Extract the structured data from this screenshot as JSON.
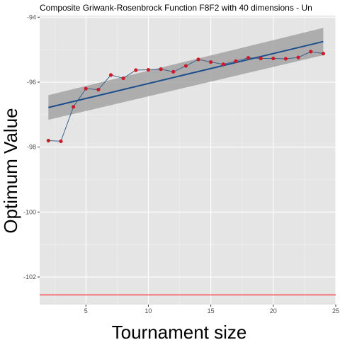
{
  "chart_data": {
    "type": "line",
    "title": "Composite Griwank-Rosenbrock Function F8F2 with 40 dimensions -  Un",
    "xlabel": "Tournament size",
    "ylabel": "Optimum Value",
    "xlim": [
      1.3,
      25
    ],
    "ylim": [
      -102.85,
      -93.95
    ],
    "x_ticks": [
      5,
      10,
      15,
      20,
      25
    ],
    "x_tick_labels": [
      "5",
      "10",
      "15",
      "20",
      "25"
    ],
    "y_ticks": [
      -94,
      -96,
      -98,
      -100,
      -102
    ],
    "y_tick_labels": [
      "-94",
      "-96",
      "-98",
      "-100",
      "-102"
    ],
    "grid": true,
    "series": [
      {
        "x": [
          2,
          3,
          4,
          5,
          6,
          7,
          8,
          9,
          10,
          11,
          12,
          13,
          14,
          15,
          16,
          17,
          18,
          19,
          20,
          21,
          22,
          23,
          24
        ],
        "values": [
          -97.8,
          -97.82,
          -96.76,
          -96.2,
          -96.23,
          -95.78,
          -95.88,
          -95.63,
          -95.62,
          -95.6,
          -95.68,
          -95.5,
          -95.3,
          -95.38,
          -95.45,
          -95.35,
          -95.25,
          -95.27,
          -95.27,
          -95.28,
          -95.24,
          -95.06,
          -95.12
        ]
      }
    ],
    "trend": {
      "x": [
        2,
        24
      ],
      "y": [
        -96.78,
        -94.75
      ],
      "band_upper": [
        -96.4,
        -94.33
      ],
      "band_lower": [
        -97.16,
        -95.17
      ]
    },
    "reference_line": {
      "y": -102.55
    },
    "colors": {
      "panel": "#e5e5e5",
      "grid_major": "#ffffff",
      "series_line": "#3a5f8a",
      "points": "#cc1c2c",
      "trend_line": "#1f4e8c",
      "band": "#999999",
      "reference_line": "#ff0000"
    }
  }
}
